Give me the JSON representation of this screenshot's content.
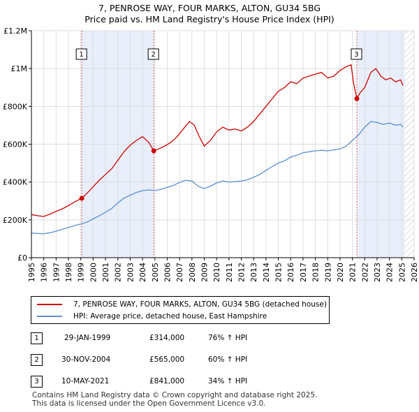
{
  "page": {
    "title_line1": "7, PENROSE WAY, FOUR MARKS, ALTON, GU34 5BG",
    "title_line2": "Price paid vs. HM Land Registry's House Price Index (HPI)"
  },
  "chart_data": {
    "type": "line",
    "title": "7, PENROSE WAY, FOUR MARKS, ALTON, GU34 5BG — Price paid vs. HM Land Registry's House Price Index (HPI)",
    "xlabel": "",
    "ylabel": "",
    "xlim": [
      1995,
      2026
    ],
    "ylim": [
      0,
      1200000
    ],
    "x_ticks": [
      "1995",
      "1996",
      "1997",
      "1998",
      "1999",
      "2000",
      "2001",
      "2002",
      "2003",
      "2004",
      "2005",
      "2006",
      "2007",
      "2008",
      "2009",
      "2010",
      "2011",
      "2012",
      "2013",
      "2014",
      "2015",
      "2016",
      "2017",
      "2018",
      "2019",
      "2020",
      "2021",
      "2022",
      "2023",
      "2024",
      "2025",
      "2026"
    ],
    "y_ticks": [
      {
        "value": 0,
        "label": "£0"
      },
      {
        "value": 200000,
        "label": "£200K"
      },
      {
        "value": 400000,
        "label": "£400K"
      },
      {
        "value": 600000,
        "label": "£600K"
      },
      {
        "value": 800000,
        "label": "£800K"
      },
      {
        "value": 1000000,
        "label": "£1M"
      },
      {
        "value": 1200000,
        "label": "£1.2M"
      }
    ],
    "grid": true,
    "shaded_periods": [
      [
        1999.08,
        2004.92
      ],
      [
        2021.36,
        2025.25
      ]
    ],
    "hatched_from": 2025.25,
    "series": [
      {
        "name": "7, PENROSE WAY, FOUR MARKS, ALTON, GU34 5BG (detached house)",
        "color": "#cc0000",
        "points": [
          [
            1995.0,
            228000
          ],
          [
            1995.5,
            222000
          ],
          [
            1996.0,
            218000
          ],
          [
            1996.5,
            230000
          ],
          [
            1997.0,
            245000
          ],
          [
            1997.5,
            258000
          ],
          [
            1998.0,
            275000
          ],
          [
            1998.5,
            295000
          ],
          [
            1999.08,
            314000
          ],
          [
            1999.5,
            340000
          ],
          [
            2000.0,
            375000
          ],
          [
            2000.5,
            410000
          ],
          [
            2001.0,
            440000
          ],
          [
            2001.5,
            470000
          ],
          [
            2002.0,
            515000
          ],
          [
            2002.5,
            560000
          ],
          [
            2003.0,
            595000
          ],
          [
            2003.5,
            620000
          ],
          [
            2004.0,
            640000
          ],
          [
            2004.5,
            610000
          ],
          [
            2004.91,
            565000
          ],
          [
            2005.3,
            575000
          ],
          [
            2005.8,
            590000
          ],
          [
            2006.3,
            610000
          ],
          [
            2006.8,
            640000
          ],
          [
            2007.3,
            680000
          ],
          [
            2007.8,
            720000
          ],
          [
            2008.2,
            700000
          ],
          [
            2008.6,
            640000
          ],
          [
            2009.0,
            590000
          ],
          [
            2009.5,
            620000
          ],
          [
            2010.0,
            665000
          ],
          [
            2010.5,
            690000
          ],
          [
            2011.0,
            675000
          ],
          [
            2011.5,
            680000
          ],
          [
            2012.0,
            670000
          ],
          [
            2012.5,
            690000
          ],
          [
            2013.0,
            720000
          ],
          [
            2013.5,
            760000
          ],
          [
            2014.0,
            800000
          ],
          [
            2014.5,
            840000
          ],
          [
            2015.0,
            880000
          ],
          [
            2015.5,
            900000
          ],
          [
            2016.0,
            930000
          ],
          [
            2016.5,
            920000
          ],
          [
            2017.0,
            950000
          ],
          [
            2017.5,
            960000
          ],
          [
            2018.0,
            970000
          ],
          [
            2018.5,
            980000
          ],
          [
            2019.0,
            950000
          ],
          [
            2019.5,
            960000
          ],
          [
            2020.0,
            990000
          ],
          [
            2020.5,
            1010000
          ],
          [
            2020.9,
            1020000
          ],
          [
            2021.1,
            920000
          ],
          [
            2021.36,
            841000
          ],
          [
            2021.6,
            870000
          ],
          [
            2022.0,
            900000
          ],
          [
            2022.5,
            980000
          ],
          [
            2022.9,
            1000000
          ],
          [
            2023.3,
            960000
          ],
          [
            2023.7,
            940000
          ],
          [
            2024.1,
            950000
          ],
          [
            2024.5,
            930000
          ],
          [
            2024.9,
            940000
          ],
          [
            2025.1,
            910000
          ]
        ]
      },
      {
        "name": "HPI: Average price, detached house, East Hampshire",
        "color": "#5b8fd0",
        "points": [
          [
            1995.0,
            130000
          ],
          [
            1995.5,
            128000
          ],
          [
            1996.0,
            127000
          ],
          [
            1996.5,
            132000
          ],
          [
            1997.0,
            140000
          ],
          [
            1997.5,
            150000
          ],
          [
            1998.0,
            160000
          ],
          [
            1998.5,
            170000
          ],
          [
            1999.0,
            178000
          ],
          [
            1999.5,
            188000
          ],
          [
            2000.0,
            205000
          ],
          [
            2000.5,
            222000
          ],
          [
            2001.0,
            240000
          ],
          [
            2001.5,
            260000
          ],
          [
            2002.0,
            290000
          ],
          [
            2002.5,
            315000
          ],
          [
            2003.0,
            330000
          ],
          [
            2003.5,
            345000
          ],
          [
            2004.0,
            355000
          ],
          [
            2004.5,
            358000
          ],
          [
            2005.0,
            355000
          ],
          [
            2005.5,
            362000
          ],
          [
            2006.0,
            372000
          ],
          [
            2006.5,
            382000
          ],
          [
            2007.0,
            398000
          ],
          [
            2007.5,
            410000
          ],
          [
            2008.0,
            405000
          ],
          [
            2008.5,
            378000
          ],
          [
            2009.0,
            365000
          ],
          [
            2009.5,
            378000
          ],
          [
            2010.0,
            395000
          ],
          [
            2010.5,
            405000
          ],
          [
            2011.0,
            400000
          ],
          [
            2011.5,
            402000
          ],
          [
            2012.0,
            405000
          ],
          [
            2012.5,
            412000
          ],
          [
            2013.0,
            425000
          ],
          [
            2013.5,
            440000
          ],
          [
            2014.0,
            462000
          ],
          [
            2014.5,
            482000
          ],
          [
            2015.0,
            500000
          ],
          [
            2015.5,
            512000
          ],
          [
            2016.0,
            532000
          ],
          [
            2016.5,
            542000
          ],
          [
            2017.0,
            555000
          ],
          [
            2017.5,
            560000
          ],
          [
            2018.0,
            565000
          ],
          [
            2018.5,
            568000
          ],
          [
            2019.0,
            565000
          ],
          [
            2019.5,
            570000
          ],
          [
            2020.0,
            575000
          ],
          [
            2020.5,
            590000
          ],
          [
            2021.0,
            620000
          ],
          [
            2021.5,
            650000
          ],
          [
            2022.0,
            690000
          ],
          [
            2022.5,
            720000
          ],
          [
            2023.0,
            715000
          ],
          [
            2023.5,
            705000
          ],
          [
            2024.0,
            712000
          ],
          [
            2024.5,
            700000
          ],
          [
            2024.9,
            705000
          ],
          [
            2025.1,
            690000
          ]
        ]
      }
    ],
    "sale_markers": [
      {
        "label": "1",
        "x": 1999.08,
        "y": 314000
      },
      {
        "label": "2",
        "x": 2004.91,
        "y": 565000
      },
      {
        "label": "3",
        "x": 2021.36,
        "y": 841000
      }
    ]
  },
  "legend": {
    "entries": [
      {
        "label": "7, PENROSE WAY, FOUR MARKS, ALTON, GU34 5BG (detached house)",
        "color": "#cc0000"
      },
      {
        "label": "HPI: Average price, detached house, East Hampshire",
        "color": "#5b8fd0"
      }
    ]
  },
  "sales_table": [
    {
      "num": "1",
      "date": "29-JAN-1999",
      "price": "£314,000",
      "hpi": "76% ↑ HPI"
    },
    {
      "num": "2",
      "date": "30-NOV-2004",
      "price": "£565,000",
      "hpi": "60% ↑ HPI"
    },
    {
      "num": "3",
      "date": "10-MAY-2021",
      "price": "£841,000",
      "hpi": "34% ↑ HPI"
    }
  ],
  "footer": {
    "line1": "Contains HM Land Registry data © Crown copyright and database right 2025.",
    "line2": "This data is licensed under the Open Government Licence v3.0."
  }
}
